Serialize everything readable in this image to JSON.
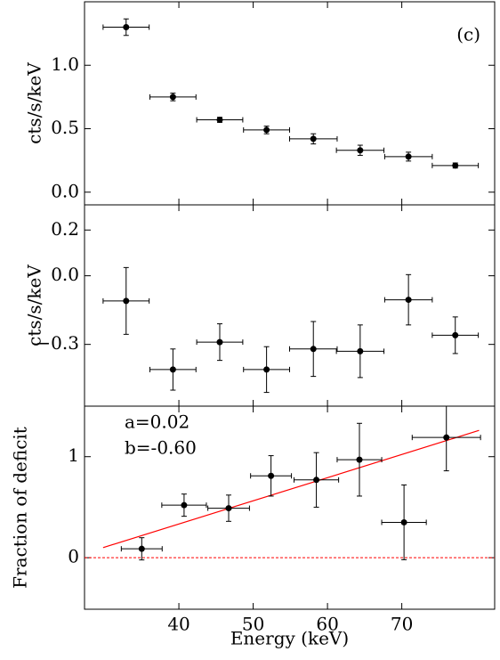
{
  "chart_data": [
    {
      "type": "scatter",
      "ylabel": "cts/s/keV",
      "annotation": "(c)",
      "xlim": [
        27.3,
        82.5
      ],
      "xticks": [
        40,
        50,
        60,
        70
      ],
      "ylim": [
        -0.1,
        1.5
      ],
      "yticks": [
        {
          "value": 0,
          "label": "0.0"
        },
        0.5,
        {
          "value": 1,
          "label": "1.0"
        }
      ],
      "series": [
        {
          "color": "#000000",
          "x": [
            32.9,
            39.2,
            45.5,
            51.8,
            58.1,
            64.4,
            70.9,
            77.2
          ],
          "xerr": [
            3.1,
            3.1,
            3.1,
            3.1,
            3.2,
            3.2,
            3.2,
            3.1
          ],
          "values": [
            1.3,
            0.75,
            0.57,
            0.49,
            0.42,
            0.33,
            0.28,
            0.21
          ],
          "yerr": [
            0.065,
            0.03,
            0.02,
            0.03,
            0.04,
            0.04,
            0.035,
            0.02
          ]
        }
      ]
    },
    {
      "type": "scatter",
      "ylabel": "cts/s/keV",
      "xlim": [
        27.3,
        82.5
      ],
      "xticks": [
        40,
        50,
        60,
        70
      ],
      "ylim": [
        -0.57,
        0.31
      ],
      "yticks": [
        {
          "value": -0.3,
          "label": "−0.3"
        },
        {
          "value": 0,
          "label": "0.0"
        },
        0.2
      ],
      "series": [
        {
          "color": "#000000",
          "x": [
            32.9,
            39.2,
            45.5,
            51.8,
            58.1,
            64.4,
            70.9,
            77.2
          ],
          "xerr": [
            3.1,
            3.1,
            3.1,
            3.1,
            3.2,
            3.2,
            3.2,
            3.1
          ],
          "values": [
            -0.11,
            -0.41,
            -0.29,
            -0.41,
            -0.32,
            -0.33,
            -0.105,
            -0.26
          ],
          "yerr": [
            0.146,
            0.09,
            0.08,
            0.1,
            0.12,
            0.115,
            0.11,
            0.08
          ]
        }
      ]
    },
    {
      "type": "scatter",
      "ylabel": "Fraction of deficit",
      "xlabel": "Energy (keV)",
      "annotations": [
        "a=0.02",
        "b=-0.60"
      ],
      "xlim": [
        27.3,
        82.5
      ],
      "xticks": [
        40,
        50,
        60,
        70
      ],
      "ylim": [
        -0.51,
        1.5
      ],
      "yticks": [
        0,
        1
      ],
      "reference_line": {
        "value": 0,
        "color": "#ff0000"
      },
      "fit": {
        "color": "#ff0000",
        "x": [
          29.8,
          80.4
        ],
        "values": [
          0.1,
          1.26
        ]
      },
      "series": [
        {
          "color": "#000000",
          "x": [
            35.0,
            40.7,
            46.7,
            52.4,
            58.5,
            64.3,
            70.3,
            76.0
          ],
          "xerr": [
            2.75,
            3.0,
            2.8,
            2.75,
            3.0,
            3.0,
            3.0,
            4.6
          ],
          "values": [
            0.088,
            0.52,
            0.49,
            0.81,
            0.77,
            0.97,
            0.35,
            1.19
          ],
          "yerr": [
            0.11,
            0.11,
            0.13,
            0.2,
            0.27,
            0.36,
            0.37,
            0.33
          ]
        }
      ]
    }
  ]
}
